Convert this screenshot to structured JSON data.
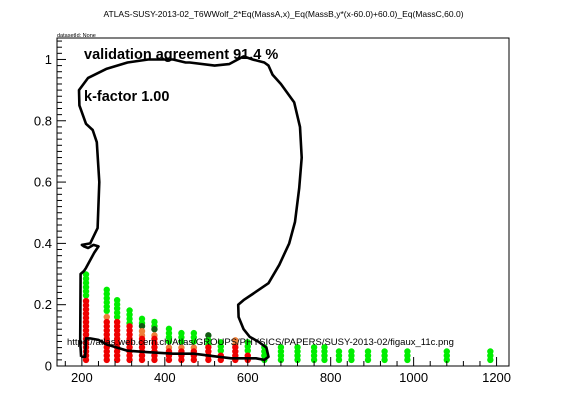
{
  "chart_data": {
    "type": "scatter",
    "title": "ATLAS-SUSY-2013-02_T6WWolf_2*Eq(MassA,x)_Eq(MassB,y*(x-60.0)+60.0)_Eq(MassC,60.0)",
    "dataset_label": "datasetId: None",
    "annotations": {
      "agreement": "validation agreement 91.4 %",
      "kfactor": "k-factor 1.00",
      "url": "https://atlas.web.cern.ch/Atlas/GROUPS/PHYSICS/PAPERS/SUSY-2013-02/figaux_11c.png"
    },
    "xlabel": "",
    "ylabel": "",
    "xlim": [
      140,
      1230
    ],
    "ylim": [
      0,
      1.07
    ],
    "x_ticks": [
      200,
      400,
      600,
      800,
      1000,
      1200
    ],
    "x_tick_labels": [
      "200",
      "400",
      "600",
      "800",
      "1000",
      "1200"
    ],
    "y_ticks": [
      0,
      0.2,
      0.4,
      0.6,
      0.8,
      1.0
    ],
    "y_tick_labels": [
      "0",
      "0.2",
      "0.4",
      "0.6",
      "0.8",
      "1"
    ],
    "colors": {
      "green": "#00ee00",
      "red": "#ee0000",
      "orange": "#ee7f3a",
      "darkgreen": "#145a14",
      "contour": "#000000"
    },
    "point_columns": [
      {
        "x": 210,
        "ymax": 0.31,
        "segments": [
          {
            "color": "green",
            "from": 0.23,
            "to": 0.31
          },
          {
            "color": "red",
            "from": 0.02,
            "to": 0.22
          }
        ]
      },
      {
        "x": 260,
        "ymax": 0.25,
        "segments": [
          {
            "color": "green",
            "from": 0.18,
            "to": 0.25
          },
          {
            "color": "orange",
            "from": 0.16,
            "to": 0.17
          },
          {
            "color": "red",
            "from": 0.02,
            "to": 0.15
          }
        ]
      },
      {
        "x": 285,
        "ymax": 0.22,
        "segments": [
          {
            "color": "green",
            "from": 0.16,
            "to": 0.22
          },
          {
            "color": "red",
            "from": 0.02,
            "to": 0.15
          }
        ]
      },
      {
        "x": 315,
        "ymax": 0.19,
        "segments": [
          {
            "color": "green",
            "from": 0.14,
            "to": 0.19
          },
          {
            "color": "red",
            "from": 0.02,
            "to": 0.13
          }
        ]
      },
      {
        "x": 345,
        "ymax": 0.16,
        "segments": [
          {
            "color": "green",
            "from": 0.14,
            "to": 0.16
          },
          {
            "color": "darkgreen",
            "from": 0.13,
            "to": 0.135
          },
          {
            "color": "orange",
            "from": 0.1,
            "to": 0.12
          },
          {
            "color": "red",
            "from": 0.02,
            "to": 0.09
          }
        ]
      },
      {
        "x": 375,
        "ymax": 0.15,
        "segments": [
          {
            "color": "green",
            "from": 0.13,
            "to": 0.15
          },
          {
            "color": "darkgreen",
            "from": 0.12,
            "to": 0.125
          },
          {
            "color": "orange",
            "from": 0.1,
            "to": 0.11
          },
          {
            "color": "red",
            "from": 0.02,
            "to": 0.09
          }
        ]
      },
      {
        "x": 410,
        "ymax": 0.13,
        "segments": [
          {
            "color": "green",
            "from": 0.08,
            "to": 0.13
          },
          {
            "color": "orange",
            "from": 0.06,
            "to": 0.07
          },
          {
            "color": "red",
            "from": 0.02,
            "to": 0.05
          }
        ]
      },
      {
        "x": 440,
        "ymax": 0.12,
        "segments": [
          {
            "color": "green",
            "from": 0.08,
            "to": 0.12
          },
          {
            "color": "orange",
            "from": 0.06,
            "to": 0.07
          },
          {
            "color": "red",
            "from": 0.02,
            "to": 0.05
          }
        ]
      },
      {
        "x": 470,
        "ymax": 0.11,
        "segments": [
          {
            "color": "green",
            "from": 0.08,
            "to": 0.11
          },
          {
            "color": "orange",
            "from": 0.06,
            "to": 0.07
          },
          {
            "color": "red",
            "from": 0.02,
            "to": 0.05
          }
        ]
      },
      {
        "x": 505,
        "ymax": 0.11,
        "segments": [
          {
            "color": "darkgreen",
            "from": 0.1,
            "to": 0.11
          },
          {
            "color": "green",
            "from": 0.07,
            "to": 0.095
          },
          {
            "color": "red",
            "from": 0.02,
            "to": 0.065
          }
        ]
      },
      {
        "x": 535,
        "ymax": 0.09,
        "segments": [
          {
            "color": "green",
            "from": 0.05,
            "to": 0.09
          },
          {
            "color": "red",
            "from": 0.02,
            "to": 0.045
          }
        ]
      },
      {
        "x": 570,
        "ymax": 0.085,
        "segments": [
          {
            "color": "orange",
            "from": 0.07,
            "to": 0.085
          },
          {
            "color": "red",
            "from": 0.02,
            "to": 0.065
          }
        ]
      },
      {
        "x": 600,
        "ymax": 0.08,
        "segments": [
          {
            "color": "green",
            "from": 0.05,
            "to": 0.08
          },
          {
            "color": "red",
            "from": 0.02,
            "to": 0.045
          }
        ]
      },
      {
        "x": 640,
        "ymax": 0.07,
        "segments": [
          {
            "color": "green",
            "from": 0.02,
            "to": 0.07
          }
        ]
      },
      {
        "x": 680,
        "ymax": 0.07,
        "segments": [
          {
            "color": "green",
            "from": 0.02,
            "to": 0.07
          }
        ]
      },
      {
        "x": 720,
        "ymax": 0.07,
        "segments": [
          {
            "color": "green",
            "from": 0.02,
            "to": 0.07
          }
        ]
      },
      {
        "x": 760,
        "ymax": 0.07,
        "segments": [
          {
            "color": "green",
            "from": 0.02,
            "to": 0.07
          }
        ]
      },
      {
        "x": 785,
        "ymax": 0.065,
        "segments": [
          {
            "color": "green",
            "from": 0.02,
            "to": 0.065
          }
        ]
      },
      {
        "x": 820,
        "ymax": 0.06,
        "segments": [
          {
            "color": "green",
            "from": 0.02,
            "to": 0.06
          }
        ]
      },
      {
        "x": 850,
        "ymax": 0.06,
        "segments": [
          {
            "color": "green",
            "from": 0.02,
            "to": 0.06
          }
        ]
      },
      {
        "x": 890,
        "ymax": 0.06,
        "segments": [
          {
            "color": "green",
            "from": 0.02,
            "to": 0.06
          }
        ]
      },
      {
        "x": 930,
        "ymax": 0.055,
        "segments": [
          {
            "color": "green",
            "from": 0.02,
            "to": 0.055
          }
        ]
      },
      {
        "x": 985,
        "ymax": 0.055,
        "segments": [
          {
            "color": "green",
            "from": 0.02,
            "to": 0.055
          }
        ]
      },
      {
        "x": 1080,
        "ymax": 0.05,
        "segments": [
          {
            "color": "green",
            "from": 0.02,
            "to": 0.05
          }
        ]
      },
      {
        "x": 1185,
        "ymax": 0.05,
        "segments": [
          {
            "color": "green",
            "from": 0.02,
            "to": 0.05
          }
        ]
      }
    ],
    "contour": [
      [
        198,
        0.03
      ],
      [
        196,
        0.08
      ],
      [
        197,
        0.3
      ],
      [
        205,
        0.31
      ],
      [
        210,
        0.32
      ],
      [
        230,
        0.37
      ],
      [
        240,
        0.39
      ],
      [
        228,
        0.395
      ],
      [
        215,
        0.385
      ],
      [
        205,
        0.39
      ],
      [
        200,
        0.395
      ],
      [
        220,
        0.4
      ],
      [
        238,
        0.45
      ],
      [
        242,
        0.6
      ],
      [
        236,
        0.73
      ],
      [
        226,
        0.77
      ],
      [
        210,
        0.79
      ],
      [
        194,
        0.85
      ],
      [
        193,
        0.9
      ],
      [
        215,
        0.94
      ],
      [
        260,
        0.97
      ],
      [
        310,
        0.99
      ],
      [
        360,
        1.0
      ],
      [
        420,
        1.0
      ],
      [
        450,
        0.99
      ],
      [
        460,
        0.99
      ],
      [
        520,
        0.98
      ],
      [
        555,
        0.985
      ],
      [
        590,
        1.01
      ],
      [
        612,
        1.0
      ],
      [
        640,
        0.99
      ],
      [
        650,
        0.98
      ],
      [
        660,
        0.95
      ],
      [
        680,
        0.92
      ],
      [
        712,
        0.86
      ],
      [
        726,
        0.78
      ],
      [
        730,
        0.68
      ],
      [
        724,
        0.58
      ],
      [
        714,
        0.47
      ],
      [
        700,
        0.4
      ],
      [
        676,
        0.33
      ],
      [
        650,
        0.27
      ],
      [
        612,
        0.235
      ],
      [
        590,
        0.215
      ],
      [
        577,
        0.2
      ],
      [
        578,
        0.16
      ],
      [
        590,
        0.12
      ],
      [
        605,
        0.095
      ],
      [
        625,
        0.08
      ],
      [
        645,
        0.06
      ],
      [
        650,
        0.03
      ],
      [
        640,
        0.02
      ],
      [
        620,
        0.025
      ],
      [
        560,
        0.025
      ],
      [
        530,
        0.03
      ],
      [
        470,
        0.04
      ],
      [
        420,
        0.04
      ],
      [
        360,
        0.045
      ],
      [
        310,
        0.05
      ],
      [
        260,
        0.07
      ],
      [
        240,
        0.085
      ],
      [
        220,
        0.09
      ],
      [
        210,
        0.09
      ],
      [
        208,
        0.03
      ],
      [
        198,
        0.03
      ]
    ]
  }
}
